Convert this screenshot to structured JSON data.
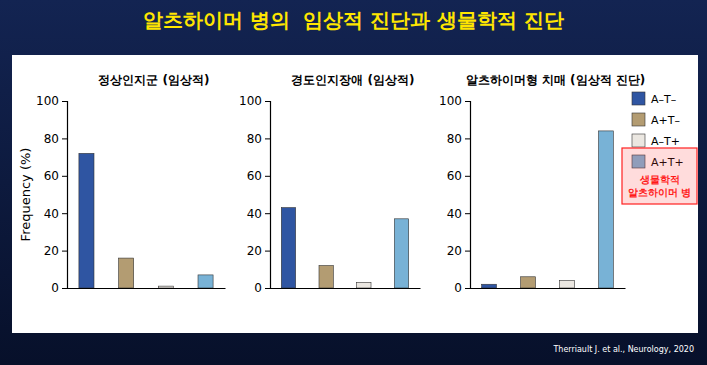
{
  "title": "알츠하이머 병의  임상적 진단과 생물학적 진단",
  "source": "Therriault J. et al., Neurology, 2020",
  "chart_data": [
    {
      "type": "bar",
      "title": "정상인지군 (임상적)",
      "y_label": "Frequency (%)",
      "categories": [
        null
      ],
      "ylim": [
        0,
        100
      ],
      "yticks": [
        0,
        20,
        40,
        60,
        80,
        100
      ],
      "tick_labels": "y",
      "series": [
        {
          "color": "#2f55a2",
          "values": [
            72
          ]
        },
        {
          "color": "#b39c72",
          "values": [
            16
          ]
        },
        {
          "color": "#ebe7e1",
          "values": [
            1
          ]
        },
        {
          "color": "#78b2d6",
          "values": [
            7
          ]
        }
      ]
    },
    {
      "type": "bar",
      "title": "경도인지장애 (임상적)",
      "categories": [
        null
      ],
      "ylim": [
        0,
        100
      ],
      "yticks": [
        0,
        20,
        40,
        60,
        80,
        100
      ],
      "tick_labels": "y",
      "series": [
        {
          "color": "#2f55a2",
          "values": [
            43
          ]
        },
        {
          "color": "#b39c72",
          "values": [
            12
          ]
        },
        {
          "color": "#ebe7e1",
          "values": [
            3
          ]
        },
        {
          "color": "#78b2d6",
          "values": [
            37
          ]
        }
      ]
    },
    {
      "type": "bar",
      "title": "알츠하이머형 치매 (임상적 진단)",
      "categories": [
        null
      ],
      "ylim": [
        0,
        100
      ],
      "yticks": [
        0,
        20,
        40,
        60,
        80,
        100
      ],
      "tick_labels": "y",
      "legend": "right",
      "annotation": [
        "생물학적",
        "알츠하이머 병"
      ],
      "series": [
        {
          "name": "A–T–",
          "color": "#2f55a2",
          "values": [
            2
          ]
        },
        {
          "name": "A+T–",
          "color": "#b39c72",
          "values": [
            6
          ]
        },
        {
          "name": "A–T+",
          "color": "#ebe7e1",
          "values": [
            4
          ]
        },
        {
          "name": "A+T+",
          "color": "#78b2d6",
          "values": [
            84
          ]
        }
      ]
    }
  ]
}
